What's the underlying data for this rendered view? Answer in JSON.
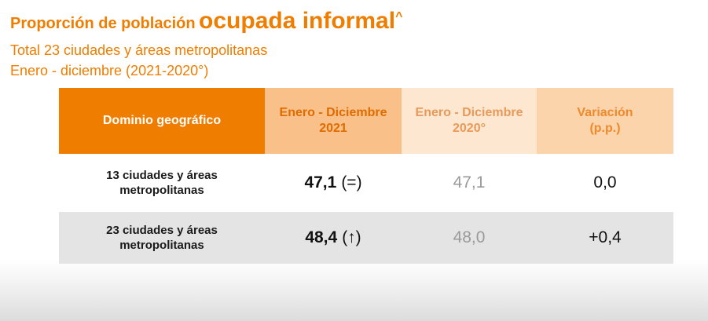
{
  "header": {
    "title_prefix": "Proporción de población",
    "title_emphasis": "ocupada informal",
    "title_mark": "^",
    "subtitle_1": "Total 23 ciudades y áreas metropolitanas",
    "subtitle_2": "Enero - diciembre (2021-2020°)"
  },
  "table": {
    "headers": {
      "domain": "Dominio geográfico",
      "col2021_line1": "Enero - Diciembre",
      "col2021_line2": "2021",
      "col2020_line1": "Enero - Diciembre",
      "col2020_line2": "2020°",
      "var_line1": "Variación",
      "var_line2": "(p.p.)"
    },
    "rows": [
      {
        "domain_line1": "13 ciudades y áreas",
        "domain_line2": "metropolitanas",
        "value_2021": "47,1",
        "indicator_2021": "(=)",
        "value_2020": "47,1",
        "variation": "0,0"
      },
      {
        "domain_line1": "23 ciudades y áreas",
        "domain_line2": "metropolitanas",
        "value_2021": "48,4",
        "indicator_2021": "(↑)",
        "value_2020": "48,0",
        "variation": "+0,4"
      }
    ]
  },
  "colors": {
    "brand_orange": "#ef7d00",
    "header_2021": "#f9c089",
    "header_2020": "#fde7d0",
    "header_variation": "#fcd4ac",
    "row_alt": "#e4e4e4"
  }
}
